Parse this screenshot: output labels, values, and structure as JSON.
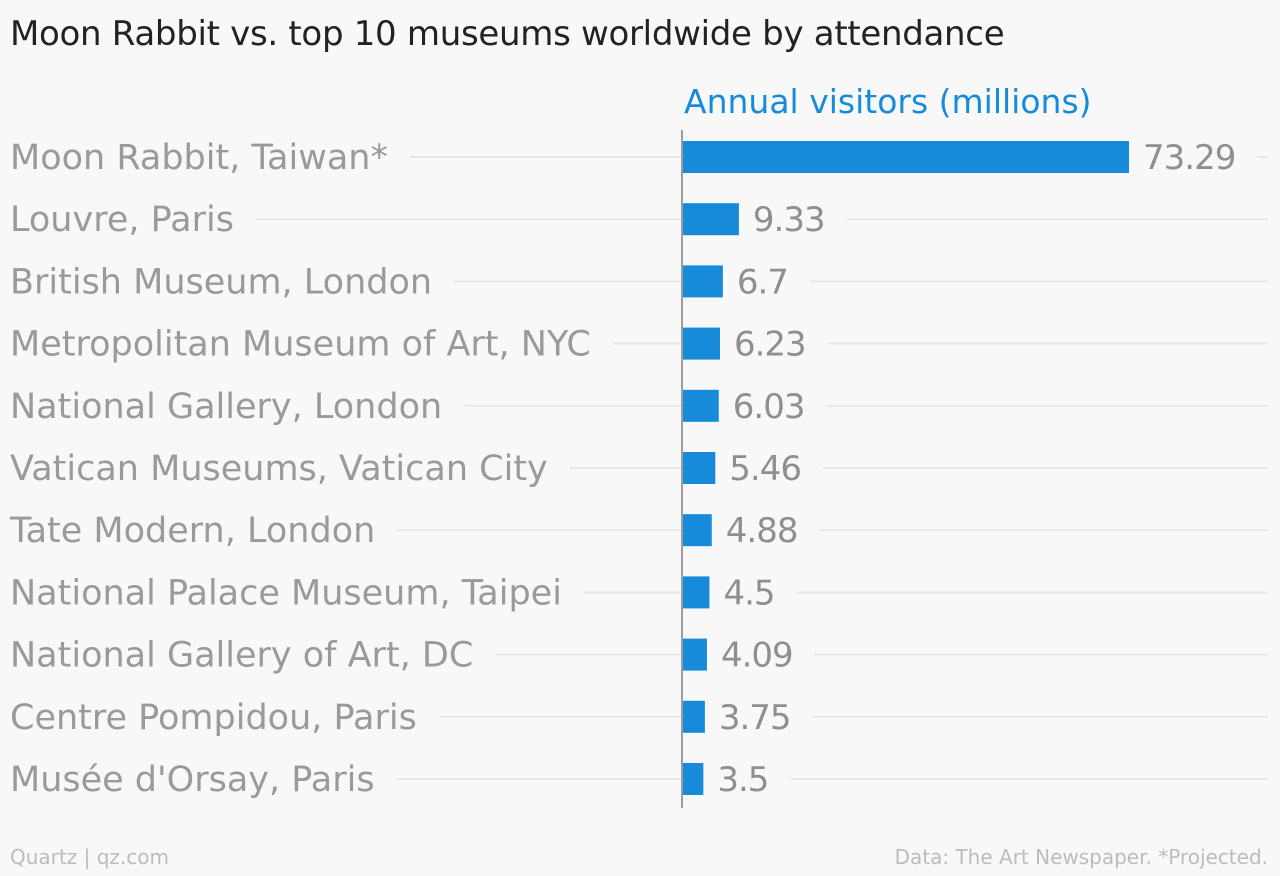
{
  "chart_data": {
    "type": "bar",
    "orientation": "horizontal",
    "title": "Moon Rabbit vs. top 10 museums worldwide by attendance",
    "series": [
      {
        "name": "Annual visitors (millions)",
        "values": [
          73.29,
          9.33,
          6.7,
          6.23,
          6.03,
          5.46,
          4.88,
          4.5,
          4.09,
          3.75,
          3.5
        ]
      }
    ],
    "categories": [
      "Moon Rabbit, Taiwan*",
      "Louvre, Paris",
      "British Museum, London",
      "Metropolitan Museum of Art, NYC",
      "National Gallery, London",
      "Vatican Museums, Vatican City",
      "Tate Modern, London",
      "National Palace Museum, Taipei",
      "National Gallery of Art, DC",
      "Centre Pompidou, Paris",
      "Musée d'Orsay, Paris"
    ],
    "value_labels": [
      "73.29",
      "9.33",
      "6.7",
      "6.23",
      "6.03",
      "5.46",
      "4.88",
      "4.5",
      "4.09",
      "3.75",
      "3.5"
    ],
    "xlim": [
      0,
      73.29
    ],
    "grid": true,
    "legend": "top"
  },
  "footer": {
    "source": "Quartz | qz.com",
    "note": "Data: The Art Newspaper. *Projected."
  },
  "colors": {
    "bar": "#178bd9",
    "series_label": "#178bd9",
    "category_text": "#9a9a9a",
    "value_text": "#8f8f8f",
    "gridline": "#e6e6e6",
    "axis": "#9c9c9c"
  }
}
